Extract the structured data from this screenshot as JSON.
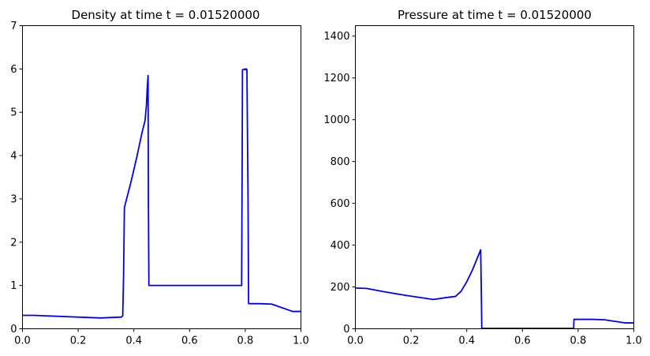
{
  "chart_data": [
    {
      "type": "line",
      "title": "Density at time t =     0.01520000",
      "xlabel": "",
      "ylabel": "",
      "xlim": [
        0,
        1
      ],
      "ylim": [
        0,
        7
      ],
      "xticks": [
        "0.0",
        "0.2",
        "0.4",
        "0.6",
        "0.8",
        "1.0"
      ],
      "yticks": [
        "0",
        "1",
        "2",
        "3",
        "4",
        "5",
        "6",
        "7"
      ],
      "grid": false,
      "color": "#0000ee",
      "series": [
        {
          "x": [
            0.0,
            0.04,
            0.28,
            0.355,
            0.36,
            0.363,
            0.366,
            0.37,
            0.39,
            0.41,
            0.43,
            0.44,
            0.445,
            0.448,
            0.451,
            0.452,
            0.454,
            0.6,
            0.787,
            0.789,
            0.79,
            0.799,
            0.8,
            0.804,
            0.806,
            0.81,
            0.812,
            0.85,
            0.895,
            0.97,
            1.0
          ],
          "y": [
            0.31,
            0.31,
            0.25,
            0.27,
            0.3,
            1.2,
            2.8,
            2.9,
            3.4,
            3.95,
            4.55,
            4.8,
            5.15,
            5.55,
            5.85,
            3.0,
            1.0,
            1.0,
            1.0,
            4.0,
            5.98,
            6.0,
            5.98,
            6.0,
            5.98,
            3.0,
            0.58,
            0.58,
            0.57,
            0.4,
            0.4
          ]
        }
      ]
    },
    {
      "type": "line",
      "title": "Pressure at time t =     0.01520000",
      "xlabel": "",
      "ylabel": "",
      "xlim": [
        0,
        1
      ],
      "ylim": [
        0,
        1450
      ],
      "xticks": [
        "0.0",
        "0.2",
        "0.4",
        "0.6",
        "0.8",
        "1.0"
      ],
      "yticks": [
        "0",
        "200",
        "400",
        "600",
        "800",
        "1000",
        "1200",
        "1400"
      ],
      "grid": false,
      "color": "#0000ee",
      "series": [
        {
          "x": [
            0.0,
            0.04,
            0.1,
            0.18,
            0.28,
            0.32,
            0.36,
            0.38,
            0.4,
            0.42,
            0.44,
            0.45,
            0.452,
            0.454,
            0.6,
            0.784,
            0.785,
            0.79,
            0.85,
            0.895,
            0.97,
            1.0
          ],
          "y": [
            195,
            193,
            178,
            160,
            140,
            148,
            155,
            180,
            225,
            280,
            345,
            378,
            200,
            2,
            2,
            2,
            45,
            45,
            45,
            43,
            28,
            28
          ]
        }
      ]
    }
  ]
}
